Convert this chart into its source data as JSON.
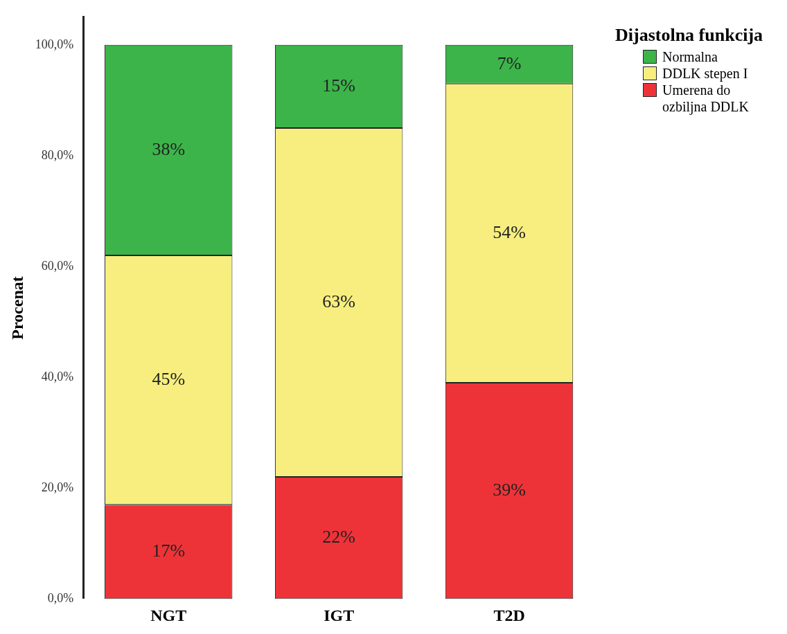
{
  "chart_data": {
    "type": "bar",
    "stacked": true,
    "ylabel": "Procenat",
    "legend_title": "Dijastolna funkcija",
    "legend": "top right",
    "grid": false,
    "categories": [
      "NGT",
      "IGT",
      "T2D"
    ],
    "series": [
      {
        "name": "Umerena do ozbiljna DDLK",
        "color": "#ee3338",
        "values": [
          17,
          22,
          39
        ],
        "value_labels": [
          "17%",
          "22%",
          "39%"
        ]
      },
      {
        "name": "DDLK stepen I",
        "color": "#f7ee7f",
        "values": [
          45,
          63,
          54
        ],
        "value_labels": [
          "45%",
          "63%",
          "54%"
        ]
      },
      {
        "name": "Normalna",
        "color": "#3cb44a",
        "values": [
          38,
          15,
          7
        ],
        "value_labels": [
          "38%",
          "15%",
          "7%"
        ]
      }
    ],
    "ylim": [
      0,
      105
    ],
    "yticks": [
      {
        "value": 0,
        "label": "0,0%"
      },
      {
        "value": 20,
        "label": "20,0%"
      },
      {
        "value": 40,
        "label": "40,0%"
      },
      {
        "value": 60,
        "label": "60,0%"
      },
      {
        "value": 80,
        "label": "80,0%"
      },
      {
        "value": 100,
        "label": "100,0%"
      }
    ]
  }
}
